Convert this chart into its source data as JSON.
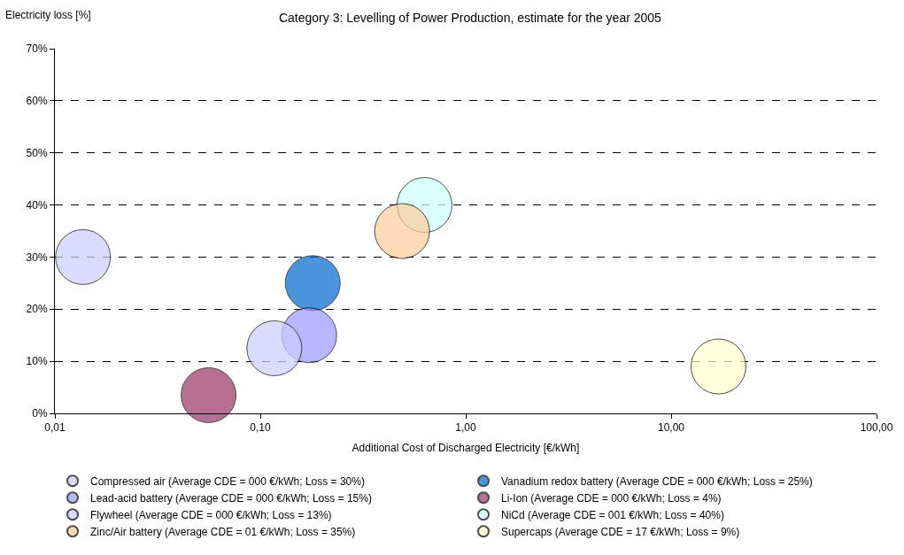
{
  "chart_data": {
    "type": "bubble",
    "title": "Category 3: Levelling of Power Production, estimate for the year 2005",
    "xlabel": "Additional Cost of Discharged Electricity [€/kWh]",
    "ylabel": "Electricity loss [%]",
    "log": "x",
    "grid": "y",
    "legend": "bottom",
    "xlim": [
      0.01,
      100
    ],
    "xticks": [
      {
        "value": 0.01,
        "label": "0,01"
      },
      {
        "value": 0.1,
        "label": "0,10"
      },
      {
        "value": 1,
        "label": "1,00"
      },
      {
        "value": 10,
        "label": "10,00"
      },
      {
        "value": 100,
        "label": "100,00"
      }
    ],
    "ylim": [
      0,
      70
    ],
    "yticks": [
      {
        "value": 0,
        "label": "0%"
      },
      {
        "value": 10,
        "label": "10%"
      },
      {
        "value": 20,
        "label": "20%"
      },
      {
        "value": 30,
        "label": "30%"
      },
      {
        "value": 40,
        "label": "40%"
      },
      {
        "value": 50,
        "label": "50%"
      },
      {
        "value": 60,
        "label": "60%"
      },
      {
        "value": 70,
        "label": "70%"
      }
    ],
    "series": [
      {
        "name": "Compressed air (Average CDE = 000 €/kWh; Loss = 30%)",
        "color": "#ccccff",
        "x": [
          0.0137
        ],
        "values": [
          30
        ],
        "sizes": [
          1
        ]
      },
      {
        "name": "Vanadium redox battery (Average CDE = 000 €/kWh; Loss = 25%)",
        "color": "#0066cc",
        "x": [
          0.18
        ],
        "values": [
          25
        ],
        "sizes": [
          1
        ]
      },
      {
        "name": "Lead-acid battery (Average CDE = 000 €/kWh; Loss = 15%)",
        "color": "#9999ff",
        "x": [
          0.173
        ],
        "values": [
          15
        ],
        "sizes": [
          1
        ]
      },
      {
        "name": "Li-Ion (Average CDE = 000 €/kWh; Loss = 4%)",
        "color": "#993366",
        "x": [
          0.056
        ],
        "values": [
          3.5
        ],
        "sizes": [
          1
        ]
      },
      {
        "name": "Flywheel (Average CDE = 000 €/kWh; Loss = 13%)",
        "color": "#ccccff",
        "x": [
          0.117
        ],
        "values": [
          12.5
        ],
        "sizes": [
          1
        ]
      },
      {
        "name": "NiCd (Average CDE = 001 €/kWh; Loss = 40%)",
        "color": "#ccffff",
        "x": [
          0.63
        ],
        "values": [
          40
        ],
        "sizes": [
          1
        ]
      },
      {
        "name": "Zinc/Air battery (Average CDE = 01 €/kWh; Loss = 35%)",
        "color": "#ffcc99",
        "x": [
          0.49
        ],
        "values": [
          35
        ],
        "sizes": [
          1
        ]
      },
      {
        "name": "Supercaps (Average CDE = 17 €/kWh; Loss = 9%)",
        "color": "#ffffcc",
        "x": [
          17
        ],
        "values": [
          9
        ],
        "sizes": [
          1
        ]
      }
    ]
  }
}
